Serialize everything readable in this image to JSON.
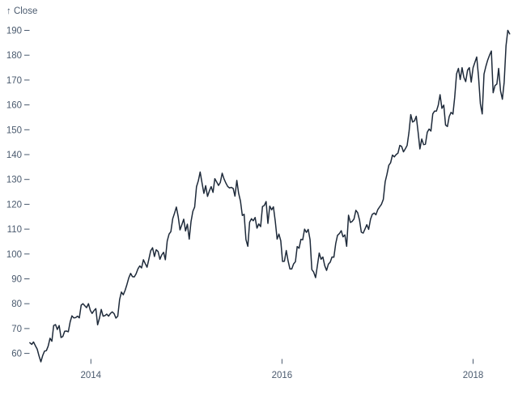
{
  "chart_data": {
    "type": "line",
    "ylabel": "↑ Close",
    "x_tick_labels": [
      "2014",
      "2016",
      "2018"
    ],
    "x_tick_values": [
      2014,
      2016,
      2018
    ],
    "y_tick_values": [
      60,
      70,
      80,
      90,
      100,
      110,
      120,
      130,
      140,
      150,
      160,
      170,
      180,
      190
    ],
    "y_tick_labels": [
      "60",
      "70",
      "80",
      "90",
      "100",
      "110",
      "120",
      "130",
      "140",
      "150",
      "160",
      "170",
      "180",
      "190"
    ],
    "xlim_decimal_years": [
      2013.36,
      2018.39
    ],
    "ylim": [
      56,
      193
    ],
    "grid": false,
    "legend": "none",
    "colors": {
      "line": "#1e2a3a",
      "axis_text": "#4a5a6e",
      "tick_mark": "#4a5a6e",
      "background": "#ffffff"
    },
    "series": [
      {
        "name": "Close",
        "start_date": "2013-05-13",
        "interval_days": 7,
        "values": [
          64.3,
          63.6,
          64.6,
          63.1,
          61.7,
          59.0,
          56.6,
          59.1,
          60.9,
          61.1,
          62.9,
          66.1,
          64.9,
          71.2,
          71.6,
          69.6,
          71.2,
          66.4,
          66.8,
          68.9,
          69.0,
          68.7,
          72.7,
          75.1,
          74.3,
          74.4,
          75.0,
          74.3,
          79.4,
          80.0,
          79.2,
          78.4,
          80.0,
          77.3,
          76.1,
          77.2,
          78.0,
          71.5,
          74.2,
          77.7,
          75.0,
          75.2,
          75.8,
          75.0,
          76.1,
          76.7,
          76.0,
          74.2,
          75.0,
          81.7,
          84.7,
          83.6,
          85.4,
          87.7,
          90.4,
          92.2,
          90.9,
          90.8,
          92.0,
          94.0,
          95.2,
          94.4,
          97.7,
          96.1,
          94.7,
          98.0,
          101.3,
          102.5,
          99.0,
          101.7,
          101.0,
          97.9,
          99.6,
          100.7,
          97.7,
          105.2,
          108.0,
          109.0,
          114.2,
          116.5,
          118.9,
          115.0,
          109.7,
          111.8,
          114.0,
          109.3,
          112.0,
          106.0,
          113.0,
          117.2,
          118.9,
          127.1,
          129.5,
          133.0,
          128.6,
          124.4,
          127.5,
          123.2,
          125.3,
          127.1,
          124.8,
          130.3,
          129.0,
          127.6,
          128.8,
          132.5,
          130.3,
          128.6,
          127.2,
          126.6,
          126.8,
          126.4,
          123.3,
          129.6,
          124.5,
          121.3,
          115.5,
          116.0,
          105.8,
          103.1,
          112.8,
          114.2,
          113.4,
          114.7,
          110.4,
          112.1,
          111.0,
          119.1,
          119.5,
          121.1,
          112.3,
          119.3,
          117.8,
          119.0,
          113.2,
          106.0,
          108.0,
          105.3,
          97.0,
          97.1,
          101.4,
          97.3,
          94.0,
          94.0,
          96.0,
          96.9,
          103.0,
          102.3,
          105.9,
          105.7,
          110.0,
          108.7,
          109.9,
          105.7,
          93.7,
          92.7,
          90.5,
          95.2,
          100.4,
          97.9,
          98.8,
          95.3,
          93.4,
          95.9,
          96.7,
          98.8,
          98.7,
          104.2,
          107.5,
          108.2,
          109.4,
          106.9,
          107.7,
          103.1,
          115.6,
          112.7,
          113.1,
          114.1,
          117.6,
          116.6,
          113.7,
          108.8,
          108.4,
          110.1,
          111.8,
          109.9,
          114.0,
          116.0,
          116.5,
          115.8,
          117.9,
          119.0,
          120.0,
          122.0,
          129.1,
          132.1,
          135.7,
          136.7,
          139.8,
          139.1,
          140.0,
          140.6,
          143.7,
          143.3,
          141.1,
          142.3,
          143.7,
          149.0,
          156.1,
          153.1,
          153.6,
          155.4,
          149.0,
          142.3,
          146.3,
          144.0,
          144.2,
          149.0,
          150.3,
          149.5,
          156.4,
          157.5,
          157.5,
          159.9,
          164.1,
          158.6,
          159.9,
          151.9,
          151.3,
          155.3,
          157.0,
          156.3,
          163.1,
          172.5,
          174.7,
          170.2,
          175.0,
          171.1,
          169.4,
          174.0,
          175.0,
          169.2,
          175.0,
          177.1,
          179.3,
          171.5,
          160.5,
          156.4,
          172.4,
          175.5,
          178.1,
          180.0,
          181.7,
          164.9,
          167.8,
          168.4,
          174.7,
          165.7,
          162.3,
          169.1,
          183.8,
          190.0,
          188.6
        ]
      }
    ]
  }
}
